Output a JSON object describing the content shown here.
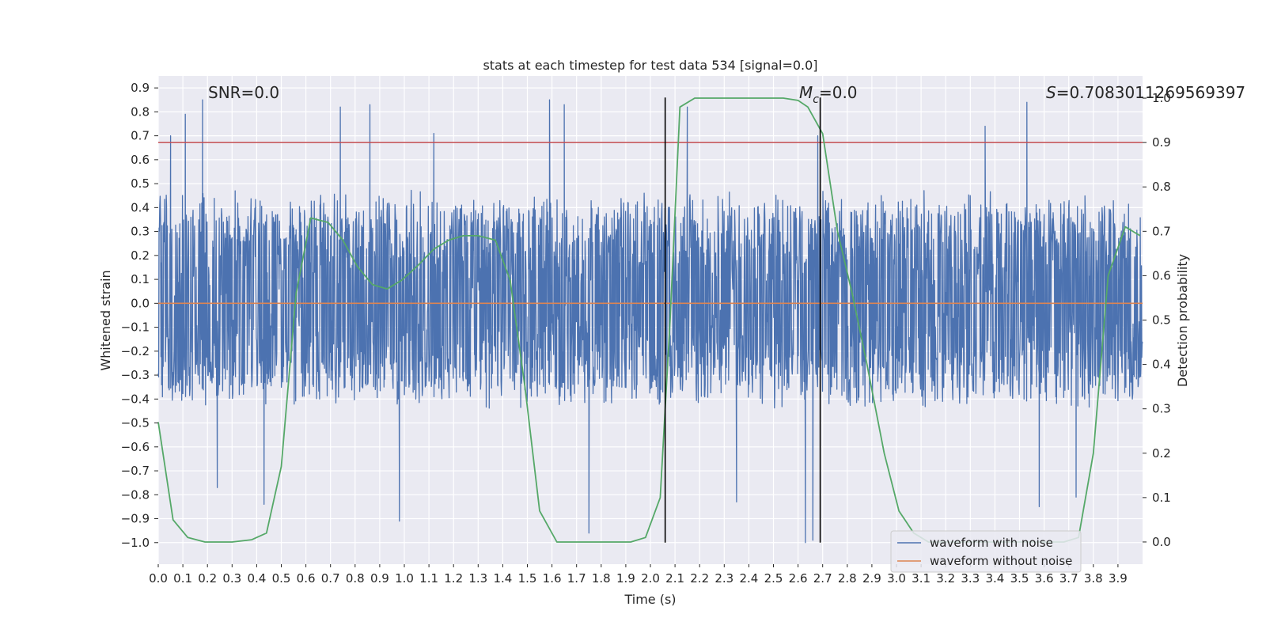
{
  "chart_data": {
    "type": "line",
    "title": "stats at each timestep for test data 534 [signal=0.0]",
    "xlabel": "Time (s)",
    "ylabel": "Whitened strain",
    "y2label": "Detection probability",
    "xlim": [
      0.0,
      4.0
    ],
    "ylim": [
      -1.09,
      0.95
    ],
    "y2lim": [
      -0.05,
      1.05
    ],
    "x_ticks": [
      0.0,
      0.1,
      0.2,
      0.3,
      0.4,
      0.5,
      0.6,
      0.7,
      0.8,
      0.9,
      1.0,
      1.1,
      1.2,
      1.3,
      1.4,
      1.5,
      1.6,
      1.7,
      1.8,
      1.9,
      2.0,
      2.1,
      2.2,
      2.3,
      2.4,
      2.5,
      2.6,
      2.7,
      2.8,
      2.9,
      3.0,
      3.1,
      3.2,
      3.3,
      3.4,
      3.5,
      3.6,
      3.7,
      3.8,
      3.9
    ],
    "y_ticks": [
      0.9,
      0.8,
      0.7,
      0.6,
      0.5,
      0.4,
      0.3,
      0.2,
      0.1,
      0.0,
      -0.1,
      -0.2,
      -0.3,
      -0.4,
      -0.5,
      -0.6,
      -0.7,
      -0.8,
      -0.9,
      -1.0
    ],
    "y2_ticks": [
      0.0,
      0.1,
      0.2,
      0.3,
      0.4,
      0.5,
      0.6,
      0.7,
      0.8,
      0.9,
      1.0
    ],
    "grid": true,
    "legend_placement": "bottom-right",
    "annotations": {
      "snr_label": "SNR=0.0",
      "mc_label_symbol": "M",
      "mc_label_sub": "c",
      "mc_label_value": "=0.0",
      "s_label_symbol": "S",
      "s_label_value": "=0.7083011269569397"
    },
    "threshold_line": {
      "y2": 0.9,
      "color": "#c44e52"
    },
    "vertical_markers": [
      2.06,
      2.69
    ],
    "series": [
      {
        "name": "waveform with noise",
        "color": "#4c72b0",
        "kind": "noise",
        "envelope_pos": 0.48,
        "envelope_neg": -0.45,
        "peaks": [
          [
            0.11,
            0.79
          ],
          [
            0.18,
            0.85
          ],
          [
            0.05,
            0.7
          ],
          [
            0.86,
            0.83
          ],
          [
            1.59,
            0.85
          ],
          [
            1.65,
            0.83
          ],
          [
            2.15,
            0.82
          ],
          [
            2.68,
            0.7
          ],
          [
            3.53,
            0.84
          ],
          [
            3.36,
            0.74
          ],
          [
            1.12,
            0.71
          ],
          [
            0.74,
            0.82
          ]
        ],
        "troughs": [
          [
            0.24,
            -0.77
          ],
          [
            0.43,
            -0.84
          ],
          [
            0.98,
            -0.91
          ],
          [
            1.75,
            -0.96
          ],
          [
            2.63,
            -1.0
          ],
          [
            2.66,
            -0.99
          ],
          [
            3.58,
            -0.85
          ],
          [
            3.73,
            -0.81
          ],
          [
            2.35,
            -0.83
          ]
        ]
      },
      {
        "name": "waveform without noise",
        "color": "#dd8452",
        "y": 0.0
      },
      {
        "name": "",
        "color": "#55a868",
        "axis": "y2",
        "x": [
          0.0,
          0.06,
          0.12,
          0.19,
          0.3,
          0.38,
          0.44,
          0.5,
          0.56,
          0.62,
          0.69,
          0.75,
          0.81,
          0.87,
          0.93,
          0.99,
          1.05,
          1.12,
          1.18,
          1.24,
          1.3,
          1.37,
          1.43,
          1.49,
          1.55,
          1.62,
          1.68,
          1.74,
          1.8,
          1.86,
          1.92,
          1.98,
          2.04,
          2.08,
          2.12,
          2.18,
          2.24,
          2.3,
          2.36,
          2.42,
          2.48,
          2.54,
          2.6,
          2.64,
          2.7,
          2.76,
          2.82,
          2.88,
          2.95,
          3.01,
          3.07,
          3.13,
          3.19,
          3.26,
          3.32,
          3.38,
          3.44,
          3.5,
          3.56,
          3.62,
          3.68,
          3.74,
          3.8,
          3.86,
          3.93,
          3.99
        ],
        "y": [
          0.27,
          0.05,
          0.01,
          0.0,
          0.0,
          0.005,
          0.02,
          0.17,
          0.56,
          0.73,
          0.72,
          0.68,
          0.62,
          0.58,
          0.57,
          0.59,
          0.62,
          0.66,
          0.68,
          0.69,
          0.69,
          0.68,
          0.59,
          0.35,
          0.07,
          0.0,
          0.0,
          0.0,
          0.0,
          0.0,
          0.0,
          0.01,
          0.1,
          0.5,
          0.98,
          1.0,
          1.0,
          1.0,
          1.0,
          1.0,
          1.0,
          1.0,
          0.995,
          0.98,
          0.92,
          0.7,
          0.56,
          0.4,
          0.2,
          0.07,
          0.02,
          0.0,
          0.0,
          0.0,
          0.0,
          0.0,
          0.0,
          0.0,
          0.0,
          0.0,
          0.0,
          0.01,
          0.2,
          0.6,
          0.71,
          0.69
        ]
      }
    ]
  }
}
